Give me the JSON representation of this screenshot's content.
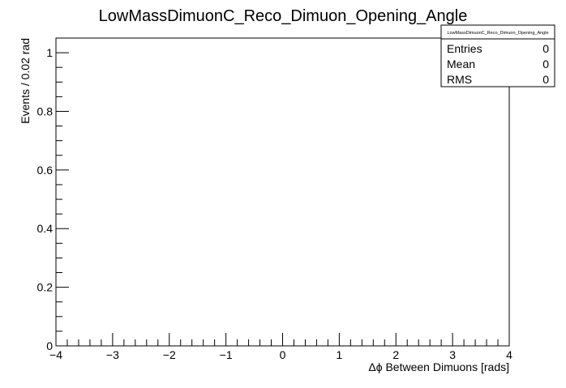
{
  "chart_data": {
    "type": "bar",
    "title": "LowMassDimuonC_Reco_Dimuon_Opening_Angle",
    "xlabel": "Δϕ Between Dimuons [rads]",
    "ylabel": "Events / 0.02 rad",
    "xlim": [
      -4,
      4
    ],
    "ylim": [
      0,
      1.05
    ],
    "x_ticks": [
      "−4",
      "−3",
      "−2",
      "−1",
      "0",
      "1",
      "2",
      "3",
      "4"
    ],
    "y_ticks": [
      "0",
      "0.2",
      "0.4",
      "0.6",
      "0.8",
      "1"
    ],
    "x_tick_values": [
      -4,
      -3,
      -2,
      -1,
      0,
      1,
      2,
      3,
      4
    ],
    "y_tick_values": [
      0,
      0.2,
      0.4,
      0.6,
      0.8,
      1
    ],
    "bin_width": 0.02,
    "values": [],
    "grid": false,
    "stats_box": {
      "title": "LowMassDimuonC_Reco_Dimuon_Opening_Angle",
      "rows": [
        {
          "label": "Entries",
          "value": "0"
        },
        {
          "label": "Mean",
          "value": "0"
        },
        {
          "label": "RMS",
          "value": "0"
        }
      ]
    }
  }
}
